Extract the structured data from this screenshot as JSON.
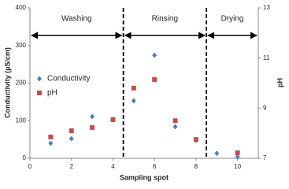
{
  "chart_data": {
    "type": "scatter",
    "x": [
      1,
      2,
      3,
      4,
      5,
      6,
      7,
      8,
      9,
      10
    ],
    "series": [
      {
        "name": "Conductivity",
        "color": "#4f81bd",
        "marker": "diamond",
        "values": [
          40,
          52,
          111,
          103,
          153,
          274,
          84,
          48,
          13,
          4
        ]
      },
      {
        "name": "pH",
        "color": "#c0504d",
        "marker": "square",
        "axis": "y2",
        "values": [
          7.85,
          8.1,
          8.23,
          8.54,
          9.8,
          10.14,
          8.5,
          7.75,
          null,
          7.22
        ]
      }
    ],
    "xlabel": "Sampling spot",
    "ylabel": "Conductivity (µS/cm)",
    "y2label": "pH",
    "xlim": [
      0,
      11
    ],
    "xticks": [
      0,
      2,
      4,
      6,
      8,
      10
    ],
    "ylim": [
      0,
      400
    ],
    "yticks": [
      0,
      100,
      200,
      300,
      400
    ],
    "y2lim": [
      7,
      13
    ],
    "y2ticks": [
      7,
      9,
      11,
      13
    ],
    "dividers": [
      4.5,
      8.5
    ],
    "regions": [
      {
        "label": "Washing",
        "from": 0,
        "to": 4.5
      },
      {
        "label": "Rinsing",
        "from": 4.5,
        "to": 8.5
      },
      {
        "label": "Drying",
        "from": 8.5,
        "to": 11
      }
    ],
    "legend": "left"
  }
}
